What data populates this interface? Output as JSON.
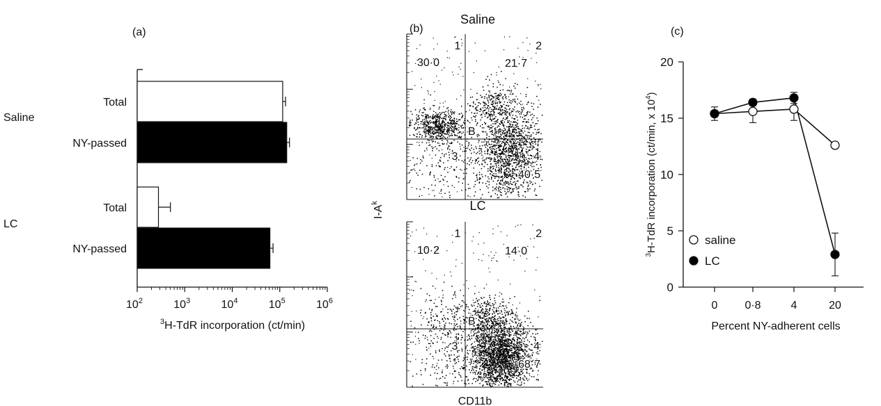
{
  "chart_data": [
    {
      "panel": "(a)",
      "type": "bar",
      "orientation": "horizontal",
      "xscale": "log",
      "xlim": [
        100,
        1000000
      ],
      "xticks": [
        {
          "value": 100,
          "base": "10",
          "exp": "2"
        },
        {
          "value": 1000,
          "base": "10",
          "exp": "3"
        },
        {
          "value": 10000,
          "base": "10",
          "exp": "4"
        },
        {
          "value": 100000,
          "base": "10",
          "exp": "5"
        },
        {
          "value": 1000000,
          "base": "10",
          "exp": "6"
        }
      ],
      "xlabel": {
        "sup": "3",
        "text": "H-TdR incorporation (ct/min)"
      },
      "groups": [
        {
          "name": "Saline",
          "bars": [
            {
              "label": "Total",
              "value": 115000,
              "err_hi": 132000,
              "fill": "#ffffff"
            },
            {
              "label": "NY-passed",
              "value": 140000,
              "err_hi": 160000,
              "fill": "#000000"
            }
          ]
        },
        {
          "name": "LC",
          "bars": [
            {
              "label": "Total",
              "value": 280,
              "err_hi": 500,
              "fill": "#ffffff"
            },
            {
              "label": "NY-passed",
              "value": 62000,
              "err_hi": 72000,
              "fill": "#000000"
            }
          ]
        }
      ]
    },
    {
      "panel": "(b)",
      "type": "scatter",
      "xlabel": "CD11b",
      "ylabel": {
        "base": "I-A",
        "sup": "k"
      },
      "plots": [
        {
          "title": "Saline",
          "q1_value": "30·0",
          "q2_value": "21·7",
          "q4_value": "40·5",
          "quadrant_labels": [
            "1",
            "2",
            "3",
            "4"
          ],
          "gate_label": "B"
        },
        {
          "title": "LC",
          "q1_value": "10·2",
          "q2_value": "14·0",
          "q4_value": "68·7",
          "quadrant_labels": [
            "1",
            "2",
            "3",
            "4"
          ],
          "gate_label": "B"
        }
      ]
    },
    {
      "panel": "(c)",
      "type": "line",
      "categories": [
        "0",
        "0·8",
        "4",
        "20"
      ],
      "ylim": [
        0,
        20
      ],
      "yticks": [
        "0",
        "5",
        "10",
        "15",
        "20"
      ],
      "xlabel": "Percent NY-adherent cells",
      "ylabel": {
        "sup": "3",
        "text": "H-TdR incorporation (ct/min, x 10",
        "sup2": "4",
        "end": ")"
      },
      "series": [
        {
          "name": "saline",
          "marker": "open-circle",
          "values": [
            15.4,
            15.6,
            15.8,
            12.6
          ],
          "err": [
            0.6,
            1.0,
            1.0,
            0
          ]
        },
        {
          "name": "LC",
          "marker": "filled-circle",
          "values": [
            15.4,
            16.4,
            16.8,
            2.9
          ],
          "err": [
            0,
            0.3,
            0.5,
            1.9
          ]
        }
      ]
    }
  ]
}
